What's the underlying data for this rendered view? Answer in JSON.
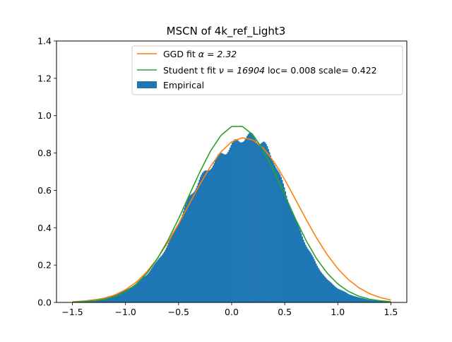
{
  "chart_data": {
    "type": "bar",
    "title": "MSCN of 4k_ref_Light3",
    "xlabel": "",
    "ylabel": "",
    "xlim": [
      -1.65,
      1.65
    ],
    "ylim": [
      0,
      1.4
    ],
    "xticks": [
      -1.5,
      -1.0,
      -0.5,
      0.0,
      0.5,
      1.0,
      1.5
    ],
    "xtick_labels": [
      "−1.5",
      "−1.0",
      "−0.5",
      "0.0",
      "0.5",
      "1.0",
      "1.5"
    ],
    "yticks": [
      0.0,
      0.2,
      0.4,
      0.6,
      0.8,
      1.0,
      1.2,
      1.4
    ],
    "ytick_labels": [
      "0.0",
      "0.2",
      "0.4",
      "0.6",
      "0.8",
      "1.0",
      "1.2",
      "1.4"
    ],
    "legend_position": "top-right",
    "grid": false,
    "series": [
      {
        "name": "GGD fit α = 2.32",
        "kind": "line",
        "color": "#ff7f0e",
        "x": [
          -1.5,
          -1.4,
          -1.3,
          -1.2,
          -1.1,
          -1.0,
          -0.9,
          -0.8,
          -0.7,
          -0.6,
          -0.5,
          -0.4,
          -0.3,
          -0.2,
          -0.1,
          0.0,
          0.1,
          0.2,
          0.3,
          0.4,
          0.5,
          0.6,
          0.7,
          0.8,
          0.9,
          1.0,
          1.1,
          1.2,
          1.3,
          1.4,
          1.5
        ],
        "y": [
          0.003,
          0.006,
          0.012,
          0.022,
          0.04,
          0.068,
          0.108,
          0.163,
          0.235,
          0.322,
          0.421,
          0.527,
          0.632,
          0.728,
          0.807,
          0.86,
          0.882,
          0.87,
          0.825,
          0.752,
          0.658,
          0.553,
          0.446,
          0.345,
          0.256,
          0.181,
          0.122,
          0.078,
          0.047,
          0.026,
          0.013
        ]
      },
      {
        "name": "Student t fit ν = 16904 loc= 0.008 scale= 0.422",
        "kind": "line",
        "color": "#2ca02c",
        "x": [
          -1.5,
          -1.4,
          -1.3,
          -1.2,
          -1.1,
          -1.0,
          -0.9,
          -0.8,
          -0.7,
          -0.6,
          -0.5,
          -0.4,
          -0.3,
          -0.2,
          -0.1,
          0.0,
          0.1,
          0.2,
          0.3,
          0.4,
          0.5,
          0.6,
          0.7,
          0.8,
          0.9,
          1.0,
          1.1,
          1.2,
          1.3,
          1.4,
          1.5
        ],
        "y": [
          0.002,
          0.004,
          0.008,
          0.017,
          0.032,
          0.057,
          0.097,
          0.155,
          0.234,
          0.333,
          0.448,
          0.574,
          0.698,
          0.81,
          0.895,
          0.942,
          0.943,
          0.898,
          0.814,
          0.702,
          0.576,
          0.449,
          0.333,
          0.234,
          0.157,
          0.099,
          0.059,
          0.033,
          0.017,
          0.009,
          0.004
        ]
      },
      {
        "name": "Empirical",
        "kind": "histogram",
        "color": "#1f77b4",
        "x": [
          -1.5,
          -1.4,
          -1.3,
          -1.2,
          -1.1,
          -1.0,
          -0.9,
          -0.8,
          -0.7,
          -0.6,
          -0.5,
          -0.4,
          -0.3,
          -0.2,
          -0.1,
          0.0,
          0.1,
          0.2,
          0.3,
          0.4,
          0.5,
          0.6,
          0.7,
          0.8,
          0.9,
          1.0,
          1.1,
          1.2,
          1.3,
          1.4,
          1.5
        ],
        "y": [
          0.005,
          0.01,
          0.016,
          0.026,
          0.04,
          0.065,
          0.1,
          0.15,
          0.22,
          0.31,
          0.43,
          0.56,
          0.66,
          0.73,
          0.79,
          0.84,
          0.88,
          0.89,
          0.85,
          0.76,
          0.6,
          0.44,
          0.31,
          0.2,
          0.12,
          0.075,
          0.045,
          0.026,
          0.014,
          0.007,
          0.002
        ]
      }
    ]
  },
  "legend_entries": [
    {
      "label_prefix": "GGD fit ",
      "label_math": "α = 2.32",
      "color": "#ff7f0e",
      "kind": "line"
    },
    {
      "label_prefix": "Student t fit ",
      "label_math": "ν = 16904",
      "label_suffix": " loc= 0.008 scale= 0.422",
      "color": "#2ca02c",
      "kind": "line"
    },
    {
      "label_prefix": "Empirical",
      "color": "#1f77b4",
      "kind": "patch"
    }
  ]
}
